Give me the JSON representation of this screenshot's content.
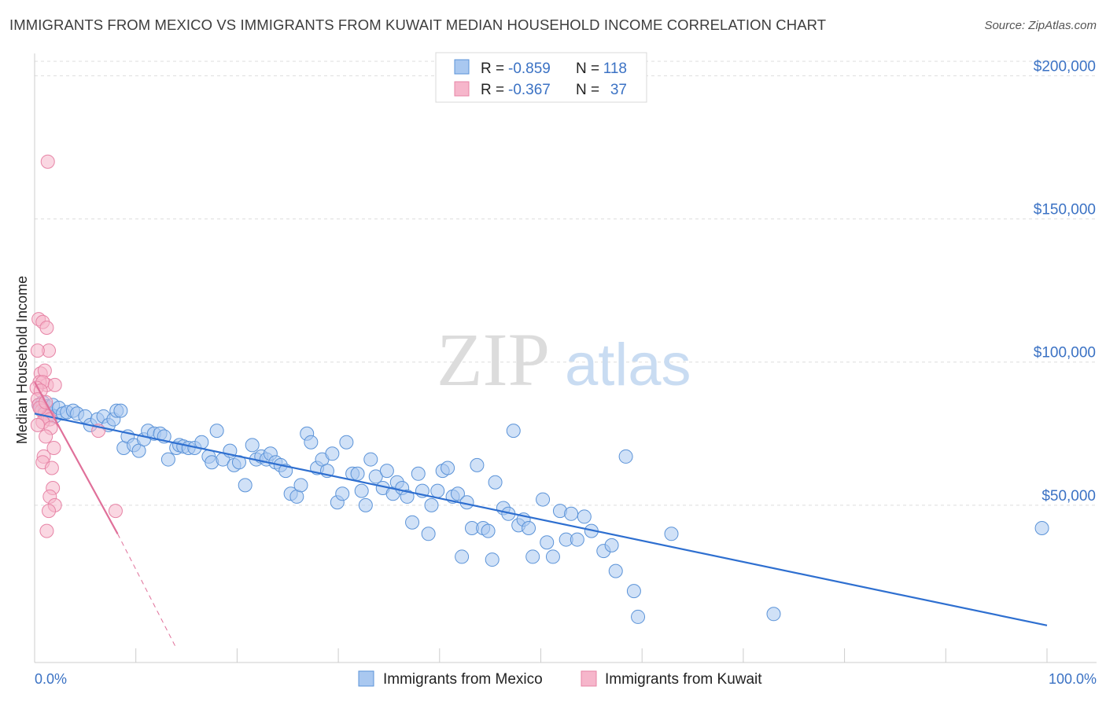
{
  "title": "IMMIGRANTS FROM MEXICO VS IMMIGRANTS FROM KUWAIT MEDIAN HOUSEHOLD INCOME CORRELATION CHART",
  "source": "Source: ZipAtlas.com",
  "watermark": {
    "zip": "ZIP",
    "atlas": "atlas"
  },
  "colors": {
    "mexico_fill": "#a9c8f0",
    "mexico_stroke": "#5b93d8",
    "mexico_line": "#2e6fd0",
    "kuwait_fill": "#f6b6cb",
    "kuwait_stroke": "#e784a6",
    "kuwait_line": "#e0709a",
    "axis_text": "#3b72c4",
    "grid": "#dddddd"
  },
  "legend": {
    "mexico": {
      "r_label": "R =",
      "r_value": "-0.859",
      "n_label": "N =",
      "n_value": "118"
    },
    "kuwait": {
      "r_label": "R =",
      "r_value": "-0.367",
      "n_label": "N =",
      "n_value": "37"
    }
  },
  "bottom_legend": {
    "mexico": "Immigrants from Mexico",
    "kuwait": "Immigrants from Kuwait"
  },
  "chart_data": {
    "type": "scatter",
    "xlabel": "",
    "ylabel": "Median Household Income",
    "xlim": [
      0,
      100
    ],
    "ylim": [
      0,
      210000
    ],
    "x_tick_labels": [
      "0.0%",
      "100.0%"
    ],
    "y_ticks": [
      50000,
      100000,
      150000,
      200000
    ],
    "y_tick_labels": [
      "$50,000",
      "$100,000",
      "$150,000",
      "$200,000"
    ],
    "grid": "horizontal dashed",
    "legend_position": "top-center",
    "series": [
      {
        "name": "Immigrants from Mexico",
        "trend": {
          "x": [
            0,
            100
          ],
          "y": [
            82000,
            8000
          ]
        },
        "points": [
          [
            0.4,
            85000
          ],
          [
            0.6,
            84000
          ],
          [
            0.8,
            86000
          ],
          [
            1.0,
            83000
          ],
          [
            1.2,
            84500
          ],
          [
            1.5,
            82000
          ],
          [
            1.8,
            85000
          ],
          [
            2.0,
            81000
          ],
          [
            2.4,
            84000
          ],
          [
            2.8,
            82000
          ],
          [
            3.2,
            82500
          ],
          [
            3.8,
            83000
          ],
          [
            4.2,
            82000
          ],
          [
            5.0,
            81000
          ],
          [
            5.5,
            78000
          ],
          [
            6.2,
            80000
          ],
          [
            6.8,
            81000
          ],
          [
            7.3,
            78000
          ],
          [
            7.8,
            80000
          ],
          [
            8.1,
            83000
          ],
          [
            8.5,
            83000
          ],
          [
            8.8,
            70000
          ],
          [
            9.2,
            74000
          ],
          [
            9.8,
            71000
          ],
          [
            10.3,
            69000
          ],
          [
            10.8,
            73000
          ],
          [
            11.2,
            76000
          ],
          [
            11.8,
            75000
          ],
          [
            12.4,
            75000
          ],
          [
            12.8,
            74000
          ],
          [
            13.2,
            66000
          ],
          [
            14.0,
            70000
          ],
          [
            14.3,
            71000
          ],
          [
            14.7,
            70500
          ],
          [
            15.2,
            70000
          ],
          [
            15.8,
            70000
          ],
          [
            16.5,
            72000
          ],
          [
            17.2,
            67000
          ],
          [
            17.5,
            65000
          ],
          [
            18.0,
            76000
          ],
          [
            18.6,
            66000
          ],
          [
            19.3,
            69000
          ],
          [
            19.7,
            64000
          ],
          [
            20.2,
            65000
          ],
          [
            20.8,
            57000
          ],
          [
            21.5,
            71000
          ],
          [
            21.9,
            66000
          ],
          [
            22.4,
            67000
          ],
          [
            22.9,
            66000
          ],
          [
            23.3,
            68000
          ],
          [
            23.8,
            65000
          ],
          [
            24.3,
            64000
          ],
          [
            24.8,
            62000
          ],
          [
            25.3,
            54000
          ],
          [
            25.9,
            53000
          ],
          [
            26.3,
            57000
          ],
          [
            26.9,
            75000
          ],
          [
            27.3,
            72000
          ],
          [
            27.9,
            63000
          ],
          [
            28.4,
            66000
          ],
          [
            28.9,
            62000
          ],
          [
            29.4,
            68000
          ],
          [
            29.9,
            51000
          ],
          [
            30.4,
            54000
          ],
          [
            30.8,
            72000
          ],
          [
            31.4,
            61000
          ],
          [
            31.9,
            61000
          ],
          [
            32.3,
            55000
          ],
          [
            32.7,
            50000
          ],
          [
            33.2,
            66000
          ],
          [
            33.7,
            60000
          ],
          [
            34.4,
            56000
          ],
          [
            34.8,
            62000
          ],
          [
            35.4,
            54000
          ],
          [
            35.8,
            58000
          ],
          [
            36.3,
            56000
          ],
          [
            36.8,
            53000
          ],
          [
            37.3,
            44000
          ],
          [
            37.9,
            61000
          ],
          [
            38.3,
            55000
          ],
          [
            38.9,
            40000
          ],
          [
            39.2,
            50000
          ],
          [
            39.8,
            55000
          ],
          [
            40.3,
            62000
          ],
          [
            40.8,
            63000
          ],
          [
            41.3,
            53000
          ],
          [
            41.8,
            54000
          ],
          [
            42.2,
            32000
          ],
          [
            42.7,
            51000
          ],
          [
            43.2,
            42000
          ],
          [
            43.7,
            64000
          ],
          [
            44.3,
            42000
          ],
          [
            44.8,
            41000
          ],
          [
            45.2,
            31000
          ],
          [
            45.5,
            58000
          ],
          [
            46.3,
            49000
          ],
          [
            46.8,
            47000
          ],
          [
            47.3,
            76000
          ],
          [
            47.8,
            43000
          ],
          [
            48.3,
            45000
          ],
          [
            48.8,
            42000
          ],
          [
            49.2,
            32000
          ],
          [
            50.2,
            52000
          ],
          [
            50.6,
            37000
          ],
          [
            51.2,
            32000
          ],
          [
            51.9,
            48000
          ],
          [
            52.5,
            38000
          ],
          [
            53.0,
            47000
          ],
          [
            53.6,
            38000
          ],
          [
            54.3,
            46000
          ],
          [
            55.0,
            41000
          ],
          [
            56.2,
            34000
          ],
          [
            57.0,
            36000
          ],
          [
            57.4,
            27000
          ],
          [
            58.4,
            67000
          ],
          [
            59.2,
            20000
          ],
          [
            59.6,
            11000
          ],
          [
            62.9,
            40000
          ],
          [
            73.0,
            12000
          ],
          [
            99.5,
            42000
          ]
        ]
      },
      {
        "name": "Immigrants from Kuwait",
        "trend": {
          "x": [
            0,
            8.2
          ],
          "y": [
            93000,
            40000
          ],
          "dashed_to": {
            "x": 14,
            "y": 0
          }
        },
        "points": [
          [
            1.3,
            170000
          ],
          [
            0.4,
            115000
          ],
          [
            0.8,
            114000
          ],
          [
            1.2,
            112000
          ],
          [
            1.4,
            104000
          ],
          [
            0.3,
            104000
          ],
          [
            0.6,
            96000
          ],
          [
            1.0,
            97000
          ],
          [
            1.2,
            92000
          ],
          [
            0.5,
            93000
          ],
          [
            0.8,
            93000
          ],
          [
            0.2,
            91000
          ],
          [
            0.6,
            90000
          ],
          [
            0.3,
            87000
          ],
          [
            0.4,
            85000
          ],
          [
            0.7,
            83000
          ],
          [
            1.0,
            82000
          ],
          [
            1.3,
            81000
          ],
          [
            1.5,
            80000
          ],
          [
            0.8,
            79000
          ],
          [
            1.6,
            77000
          ],
          [
            6.3,
            76000
          ],
          [
            1.1,
            74000
          ],
          [
            1.9,
            70000
          ],
          [
            0.9,
            67000
          ],
          [
            0.8,
            65000
          ],
          [
            1.7,
            63000
          ],
          [
            1.8,
            56000
          ],
          [
            1.5,
            53000
          ],
          [
            2.0,
            50000
          ],
          [
            1.4,
            48000
          ],
          [
            8.0,
            48000
          ],
          [
            1.2,
            41000
          ],
          [
            0.5,
            84000
          ],
          [
            1.1,
            86000
          ],
          [
            0.3,
            78000
          ],
          [
            2.0,
            92000
          ]
        ]
      }
    ]
  }
}
